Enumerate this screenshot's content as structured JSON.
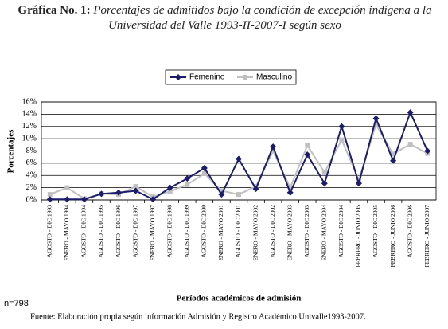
{
  "chart_data": {
    "type": "line",
    "title_label": "Gráfica No. 1:",
    "title": "Porcentajes de admitidos bajo la condición de excepción indígena a la Universidad del Valle 1993-II-2007-I según sexo",
    "y_label": "Porcentajes",
    "x_label": "Períodos académicos de admisión",
    "note": "n=798",
    "source": "Fuente: Elaboración propia según información Admisión y Registro Académico Univalle1993-2007.",
    "categories": [
      "AGOSTO - DIC 1993",
      "ENERO - MAYO 1994",
      "AGOSTO - DIC 1994",
      "AGOSTO - DIC 1995",
      "AGOSTO - DIC 1996",
      "AGOSTO - DIC 1997",
      "ENERO - MAYO 1997",
      "AGOSTO - DIC 1998",
      "AGOSTO - DIC 1999",
      "AGOSTO - DIC 2000",
      "ENERO - MAYO 2001",
      "AGOSTO - DIC 2001",
      "ENERO - MAYO 2002",
      "AGOSTO - DIC 2002",
      "ENERO - MAYO 2003",
      "AGOSTO - DIC 2003",
      "ENERO - MAYO 2004",
      "AGOSTO - DIC 2004",
      "FEBRERO - JUNIO 2005",
      "AGOSTO - DIC 2005",
      "FEBRERO - JUNIO 2006",
      "AGOSTO - DIC 2006",
      "FEBRERO - JUNIO 2007"
    ],
    "series": [
      {
        "name": "Femenino",
        "color": "#1c1c6b",
        "marker": "diamond",
        "values": [
          0.1,
          0.1,
          0.1,
          1.0,
          1.2,
          1.5,
          0.1,
          2.0,
          3.5,
          5.2,
          0.9,
          6.7,
          1.8,
          8.7,
          1.2,
          7.4,
          2.7,
          12.0,
          2.7,
          13.3,
          6.4,
          14.3,
          8.0
        ]
      },
      {
        "name": "Masculino",
        "color": "#c0c0c0",
        "marker": "square",
        "values": [
          0.9,
          2.0,
          0.2,
          1.0,
          0.9,
          2.2,
          0.5,
          1.4,
          2.5,
          4.3,
          1.5,
          0.9,
          2.2,
          8.0,
          2.0,
          8.9,
          4.5,
          9.8,
          3.3,
          12.3,
          7.5,
          9.1,
          7.6
        ]
      }
    ],
    "ylim": [
      0,
      16
    ],
    "yticks": [
      {
        "value": 0,
        "label": "0%"
      },
      {
        "value": 2,
        "label": "2%"
      },
      {
        "value": 4,
        "label": "4%"
      },
      {
        "value": 6,
        "label": "6%"
      },
      {
        "value": 8,
        "label": "8%"
      },
      {
        "value": 10,
        "label": "10%"
      },
      {
        "value": 12,
        "label": "12%"
      },
      {
        "value": 14,
        "label": "14%"
      },
      {
        "value": 16,
        "label": "16%"
      }
    ],
    "grid": true,
    "legend": "top"
  }
}
